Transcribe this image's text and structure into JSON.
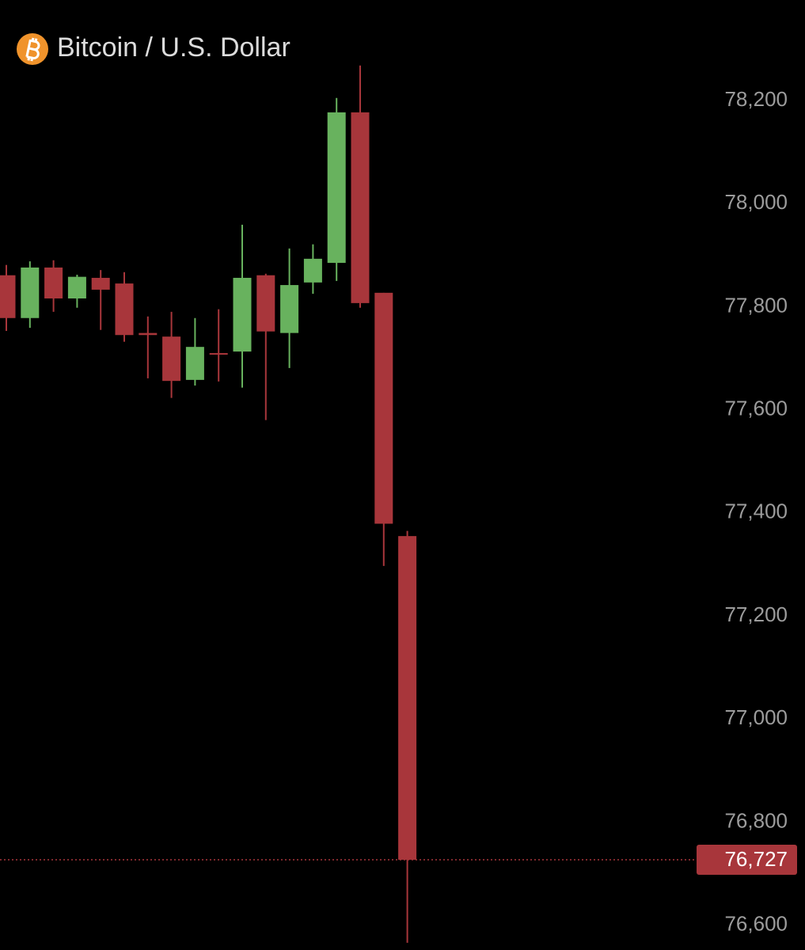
{
  "chart_data": {
    "type": "candlestick",
    "title": "Bitcoin / U.S. Dollar",
    "open": [
      77861,
      77778,
      77876,
      77816,
      77856,
      77845,
      77749,
      77742,
      77658,
      77710,
      77713,
      77861,
      77749,
      77847,
      77885,
      78177,
      77827,
      77355
    ],
    "high": [
      77881,
      77888,
      77890,
      77862,
      77871,
      77867,
      77781,
      77790,
      77778,
      77795,
      77959,
      77864,
      77913,
      77921,
      78205,
      78268,
      77827,
      77365
    ],
    "low": [
      77753,
      77759,
      77790,
      77798,
      77755,
      77732,
      77661,
      77623,
      77647,
      77655,
      77643,
      77580,
      77681,
      77825,
      77850,
      77798,
      77297,
      76566
    ],
    "close": [
      77778,
      77876,
      77816,
      77858,
      77833,
      77745,
      77745,
      77656,
      77722,
      77707,
      77856,
      77752,
      77842,
      77893,
      78177,
      77807,
      77379,
      76727
    ],
    "up_color": "#68b25e",
    "down_color": "#a8363b",
    "ylim": [
      76552,
      78395
    ],
    "yticks": [
      {
        "value": 78200,
        "label": "78,200"
      },
      {
        "value": 78000,
        "label": "78,000"
      },
      {
        "value": 77800,
        "label": "77,800"
      },
      {
        "value": 77600,
        "label": "77,600"
      },
      {
        "value": 77400,
        "label": "77,400"
      },
      {
        "value": 77200,
        "label": "77,200"
      },
      {
        "value": 77000,
        "label": "77,000"
      },
      {
        "value": 76800,
        "label": "76,800"
      },
      {
        "value": 76600,
        "label": "76,600"
      }
    ],
    "grid": false,
    "last_price": {
      "value": 76727,
      "label": "76,727"
    }
  }
}
